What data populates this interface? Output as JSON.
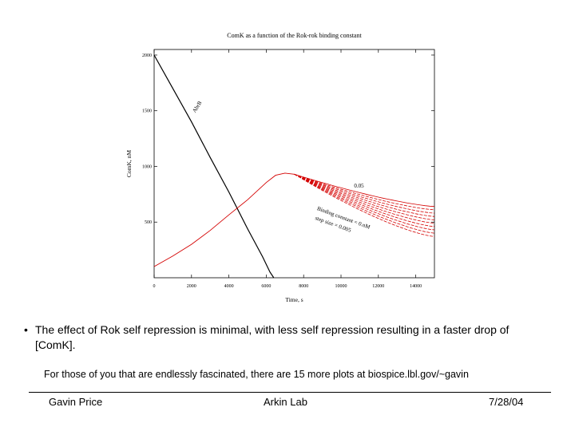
{
  "chart_data": {
    "type": "line",
    "title": "ComK as a function of the Rok-rok binding constant",
    "xlabel": "Time, s",
    "ylabel": "ComK, nM",
    "xlim": [
      0,
      15000
    ],
    "ylim": [
      0,
      2050
    ],
    "x_ticks": [
      0,
      2000,
      4000,
      6000,
      8000,
      10000,
      12000,
      14000
    ],
    "x_tick_labels": [
      "0",
      "2000",
      "4000",
      "6000",
      "8000",
      "10000",
      "12000",
      "14000"
    ],
    "y_ticks": [
      500,
      1000,
      1500,
      2000
    ],
    "y_tick_labels": [
      "500",
      "1000",
      "1500",
      "2000"
    ],
    "series": [
      {
        "name": "AbrB",
        "color": "#000000",
        "x": [
          0,
          1000,
          2000,
          3000,
          4000,
          5000,
          5800,
          6200,
          6400
        ],
        "y": [
          2000,
          1700,
          1400,
          1080,
          770,
          440,
          190,
          50,
          0
        ]
      },
      {
        "name": "ComK",
        "color": "#d40000",
        "x": [
          0,
          1000,
          2000,
          3000,
          4000,
          5000,
          6000,
          6500,
          7000,
          7500
        ],
        "y": [
          100,
          195,
          300,
          425,
          565,
          700,
          855,
          920,
          940,
          930
        ]
      }
    ],
    "family": {
      "name": "Binding constant",
      "color": "#d40000",
      "count": 10,
      "start_x": 7500,
      "start_y": 930,
      "end_x": 15000,
      "end_y_top": 640,
      "end_y_bottom": 370
    },
    "annotations": {
      "curve_label": "AbrB",
      "family_top_label": "0.05",
      "family_label_line1": "Binding constant = 0.nM",
      "family_label_line2": "step size = 0.005"
    }
  },
  "slide": {
    "bullet_symbol": "•",
    "bullet": "The effect of Rok self repression is minimal, with less self repression resulting in a faster drop of [ComK].",
    "note": "For those of you that are endlessly fascinated, there are 15 more plots at biospice.lbl.gov/~gavin"
  },
  "footer": {
    "author": "Gavin Price",
    "lab": "Arkin Lab",
    "date": "7/28/04"
  }
}
